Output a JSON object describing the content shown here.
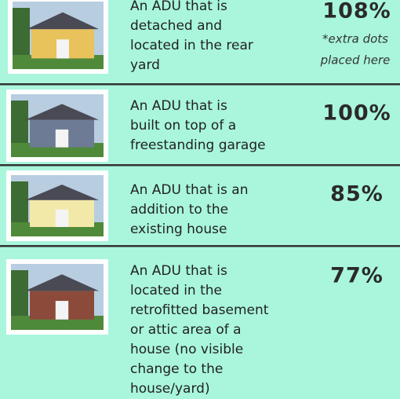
{
  "rows": [
    {
      "description": [
        "An ADU that is",
        "detached and",
        "located in the rear",
        "yard"
      ],
      "percent": "108%",
      "note": [
        "*extra dots",
        "placed here"
      ]
    },
    {
      "description": [
        "An ADU that is",
        "built on top of a",
        "freestanding garage"
      ],
      "percent": "100%"
    },
    {
      "description": [
        "An ADU that is an",
        "addition to the",
        "existing house"
      ],
      "percent": "85%"
    },
    {
      "description": [
        "An ADU that is",
        "located in the",
        "retrofitted basement",
        "or attic area of a",
        "house (no visible",
        "change to the",
        "house/yard)"
      ],
      "percent": "77%"
    }
  ]
}
